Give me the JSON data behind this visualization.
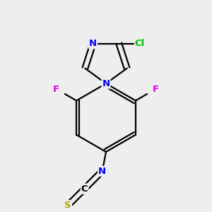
{
  "bg_color": "#eeeeee",
  "bond_color": "#000000",
  "atom_colors": {
    "Cl": "#00bb00",
    "F": "#dd00dd",
    "N": "#0000ee",
    "S": "#aaaa00",
    "C": "#000000"
  },
  "figsize": [
    3.0,
    3.0
  ],
  "dpi": 100
}
